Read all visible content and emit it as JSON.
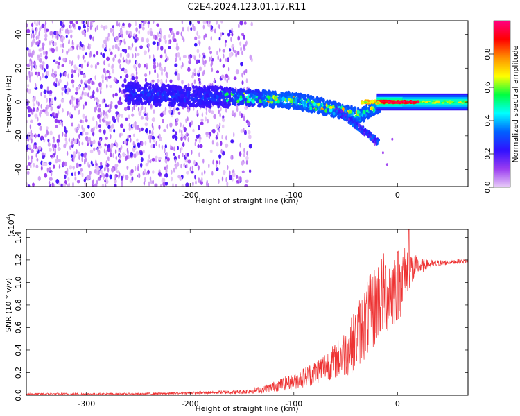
{
  "figure": {
    "title": "C2E4.2024.123.01.17.R11"
  },
  "chart_data": [
    {
      "type": "heatmap",
      "xlabel": "Height of straight line (km)",
      "ylabel": "Frequency (Hz)",
      "xlim": [
        -358,
        68
      ],
      "ylim": [
        -50,
        48
      ],
      "x_ticks": [
        -300,
        -200,
        -100,
        0
      ],
      "y_ticks": [
        -40,
        -20,
        0,
        20,
        40
      ],
      "ridge": {
        "x": [
          -358,
          -300,
          -250,
          -200,
          -160,
          -130,
          -100,
          -70,
          -50,
          -35,
          -25,
          -15,
          0,
          20,
          68
        ],
        "y": [
          6,
          6,
          5,
          3,
          3,
          2,
          1,
          -3,
          -6,
          -8,
          -4,
          -1,
          0,
          0,
          0
        ]
      },
      "notes": "spectral amplitude; scattered noise for x < -140 km; strong coherent line near 0 Hz for x > -20 km; faint branch descending to about -24 Hz near x = -25 km",
      "colorbar": {
        "label": "Normalized spectral amplitude",
        "range": [
          0.0,
          1.0
        ],
        "ticks": [
          0.0,
          0.2,
          0.4,
          0.6,
          0.8
        ],
        "tick_labels": [
          "0.0",
          "0.2",
          "0.4",
          "0.6",
          "0.8"
        ],
        "colors": [
          "#e8ccf8",
          "#9a3cf0",
          "#3010ff",
          "#0060ff",
          "#00ffff",
          "#00ff40",
          "#ffff00",
          "#ff9000",
          "#ff0000",
          "#ff0080"
        ]
      }
    },
    {
      "type": "line",
      "xlabel": "Height of straight line (km)",
      "ylabel": "SNR (10 * v/v)",
      "y_multiplier": "(x10",
      "y_multiplier_exp": "4",
      "y_multiplier_close": ")",
      "xlim": [
        -358,
        68
      ],
      "ylim": [
        0,
        1.47
      ],
      "x_ticks": [
        -300,
        -200,
        -100,
        0
      ],
      "y_ticks": [
        0.0,
        0.2,
        0.4,
        0.6,
        0.8,
        1.0,
        1.2,
        1.4
      ],
      "y_tick_labels": [
        "0.0",
        "0.2",
        "0.4",
        "0.6",
        "0.8",
        "1.0",
        "1.2",
        "1.4"
      ],
      "series": [
        {
          "color": "#ee3333",
          "x": [
            -358,
            -300,
            -250,
            -200,
            -150,
            -130,
            -110,
            -100,
            -90,
            -80,
            -70,
            -60,
            -50,
            -40,
            -35,
            -30,
            -25,
            -20,
            -15,
            -10,
            -5,
            0,
            5,
            10,
            15,
            20,
            30,
            40,
            50,
            60,
            68
          ],
          "y": [
            0.01,
            0.01,
            0.01,
            0.02,
            0.03,
            0.05,
            0.1,
            0.12,
            0.16,
            0.2,
            0.26,
            0.3,
            0.38,
            0.5,
            0.6,
            0.66,
            0.74,
            0.82,
            0.88,
            0.92,
            0.95,
            0.98,
            1.02,
            1.1,
            1.12,
            1.14,
            1.16,
            1.17,
            1.18,
            1.19,
            1.19
          ],
          "noise": [
            0.01,
            0.01,
            0.01,
            0.01,
            0.02,
            0.03,
            0.06,
            0.07,
            0.09,
            0.11,
            0.13,
            0.16,
            0.22,
            0.28,
            0.32,
            0.34,
            0.36,
            0.38,
            0.38,
            0.38,
            0.36,
            0.34,
            0.3,
            0.25,
            0.15,
            0.08,
            0.04,
            0.03,
            0.02,
            0.02,
            0.02
          ],
          "peak": {
            "x": 11,
            "y": 1.47
          }
        }
      ]
    }
  ]
}
